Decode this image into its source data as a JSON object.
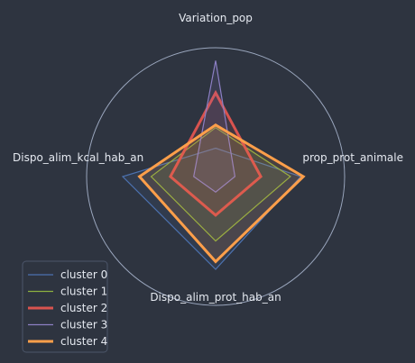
{
  "chart_data": {
    "type": "radar",
    "axes": [
      "Variation_pop",
      "prop_prot_animale",
      "Dispo_alim_prot_hab_an",
      "Dispo_alim_kcal_hab_an"
    ],
    "range": [
      0,
      1
    ],
    "grid": false,
    "legend_position": "bottom-left",
    "series": [
      {
        "name": "cluster 0",
        "values": [
          0.22,
          0.66,
          0.72,
          0.72
        ],
        "color": "#4c72b0",
        "width": 1.2
      },
      {
        "name": "cluster 1",
        "values": [
          0.38,
          0.58,
          0.5,
          0.5
        ],
        "color": "#8db040",
        "width": 1.2
      },
      {
        "name": "cluster 2",
        "values": [
          0.65,
          0.35,
          0.3,
          0.35
        ],
        "color": "#d9534f",
        "width": 3
      },
      {
        "name": "cluster 3",
        "values": [
          0.9,
          0.15,
          0.12,
          0.17
        ],
        "color": "#8c7fc4",
        "width": 1.2
      },
      {
        "name": "cluster 4",
        "values": [
          0.4,
          0.68,
          0.66,
          0.59
        ],
        "color": "#ff9f4a",
        "width": 3
      }
    ]
  }
}
